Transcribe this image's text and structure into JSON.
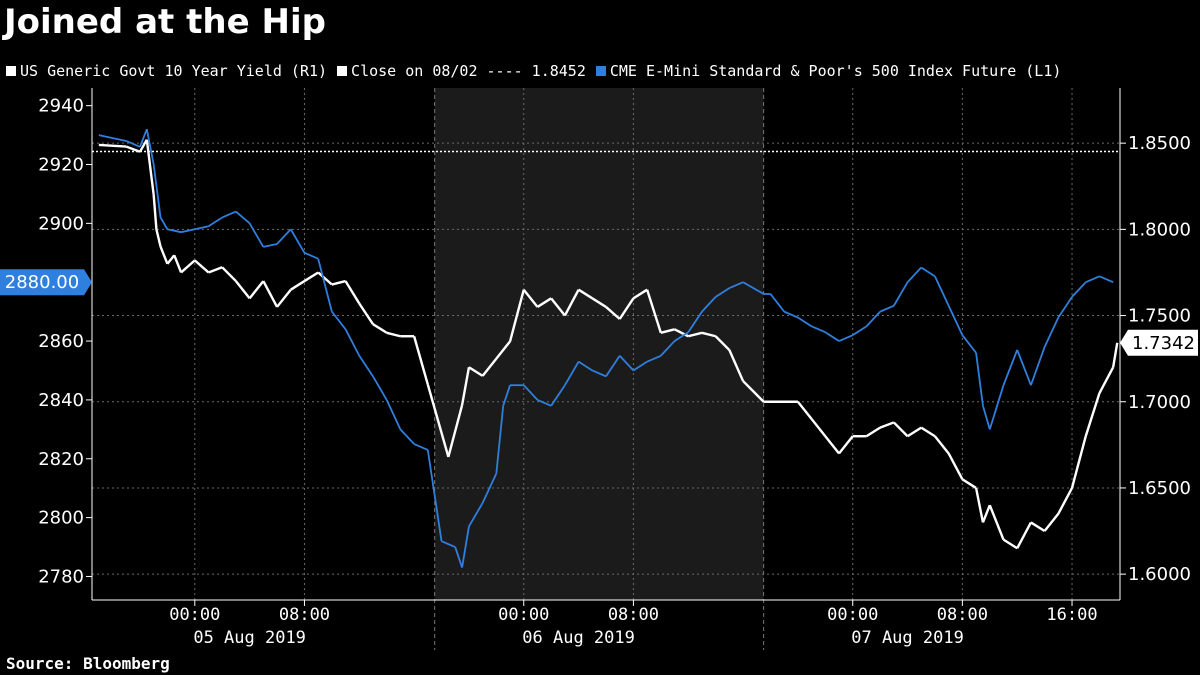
{
  "title": "Joined at the Hip",
  "legend": [
    {
      "label": "US Generic Govt 10 Year Yield  (R1)",
      "color": "#ffffff"
    },
    {
      "label": "Close on 08/02 ---- 1.8452",
      "color": "#ffffff"
    },
    {
      "label": "CME E-Mini Standard & Poor's 500 Index Future  (L1)",
      "color": "#2f7fde"
    }
  ],
  "source": "Source: Bloomberg",
  "colors": {
    "background": "#000000",
    "shade": "#1b1b1b",
    "yield": "#ffffff",
    "spx": "#2f7fde",
    "grid": "#6a6a6a"
  },
  "chart_data": {
    "type": "line",
    "grid": true,
    "left_axis": {
      "ticks": [
        "2940",
        "2920",
        "2900",
        "2880",
        "2860",
        "2840",
        "2820",
        "2800",
        "2780"
      ],
      "ylim": [
        2772,
        2946
      ],
      "last_value_label": "2880.00"
    },
    "right_axis": {
      "ticks": [
        "1.8500",
        "1.8000",
        "1.7500",
        "1.7000",
        "1.6500",
        "1.6000"
      ],
      "ylim": [
        1.585,
        1.882
      ],
      "last_value_label": "1.7342"
    },
    "x_tick_labels": [
      "00:00",
      "08:00",
      "00:00",
      "08:00",
      "00:00",
      "08:00",
      "16:00"
    ],
    "x_ticks_hours": [
      0,
      8,
      24,
      32,
      48,
      56,
      64
    ],
    "day_labels": [
      {
        "label": "05 Aug 2019",
        "hour": 4
      },
      {
        "label": "06 Aug 2019",
        "hour": 28
      },
      {
        "label": "07 Aug 2019",
        "hour": 52
      }
    ],
    "x_range_hours": [
      -7.5,
      67.5
    ],
    "shaded_session_hours": [
      17.5,
      41.5
    ],
    "reference_line": {
      "label": "Close on 08/02",
      "value": 1.8452,
      "axis": "right"
    },
    "series": [
      {
        "name": "US Generic Govt 10 Year Yield",
        "axis": "right",
        "points": [
          [
            -7,
            1.849
          ],
          [
            -5,
            1.848
          ],
          [
            -4,
            1.845
          ],
          [
            -3.5,
            1.852
          ],
          [
            -3,
            1.82
          ],
          [
            -2.8,
            1.8
          ],
          [
            -2.5,
            1.79
          ],
          [
            -2,
            1.78
          ],
          [
            -1.5,
            1.785
          ],
          [
            -1,
            1.775
          ],
          [
            0,
            1.782
          ],
          [
            1,
            1.775
          ],
          [
            2,
            1.778
          ],
          [
            3,
            1.77
          ],
          [
            4,
            1.76
          ],
          [
            5,
            1.77
          ],
          [
            6,
            1.755
          ],
          [
            7,
            1.765
          ],
          [
            8,
            1.77
          ],
          [
            9,
            1.775
          ],
          [
            10,
            1.768
          ],
          [
            11,
            1.77
          ],
          [
            12,
            1.757
          ],
          [
            13,
            1.745
          ],
          [
            14,
            1.74
          ],
          [
            15,
            1.738
          ],
          [
            16,
            1.738
          ],
          [
            17,
            1.71
          ],
          [
            18.5,
            1.668
          ],
          [
            19.5,
            1.698
          ],
          [
            20,
            1.72
          ],
          [
            21,
            1.715
          ],
          [
            22,
            1.725
          ],
          [
            23,
            1.735
          ],
          [
            24,
            1.765
          ],
          [
            25,
            1.755
          ],
          [
            26,
            1.76
          ],
          [
            27,
            1.75
          ],
          [
            28,
            1.765
          ],
          [
            29,
            1.76
          ],
          [
            30,
            1.755
          ],
          [
            31,
            1.748
          ],
          [
            32,
            1.76
          ],
          [
            33,
            1.765
          ],
          [
            34,
            1.74
          ],
          [
            35,
            1.742
          ],
          [
            36,
            1.738
          ],
          [
            37,
            1.74
          ],
          [
            38,
            1.738
          ],
          [
            39,
            1.73
          ],
          [
            40,
            1.712
          ],
          [
            41.5,
            1.7
          ],
          [
            44,
            1.7
          ],
          [
            45,
            1.69
          ],
          [
            46,
            1.68
          ],
          [
            47,
            1.67
          ],
          [
            48,
            1.68
          ],
          [
            49,
            1.68
          ],
          [
            50,
            1.685
          ],
          [
            51,
            1.688
          ],
          [
            52,
            1.68
          ],
          [
            53,
            1.685
          ],
          [
            54,
            1.68
          ],
          [
            55,
            1.67
          ],
          [
            56,
            1.655
          ],
          [
            57,
            1.65
          ],
          [
            57.5,
            1.63
          ],
          [
            58,
            1.64
          ],
          [
            59,
            1.62
          ],
          [
            60,
            1.615
          ],
          [
            61,
            1.63
          ],
          [
            62,
            1.625
          ],
          [
            63,
            1.635
          ],
          [
            64,
            1.65
          ],
          [
            65,
            1.68
          ],
          [
            66,
            1.705
          ],
          [
            67,
            1.72
          ],
          [
            67.3,
            1.7342
          ]
        ]
      },
      {
        "name": "CME E-Mini Standard & Poor's 500 Index Future",
        "axis": "left",
        "points": [
          [
            -7,
            2930
          ],
          [
            -5,
            2928
          ],
          [
            -4,
            2926
          ],
          [
            -3.5,
            2932
          ],
          [
            -3,
            2920
          ],
          [
            -2.5,
            2902
          ],
          [
            -2,
            2898
          ],
          [
            -1,
            2897
          ],
          [
            0,
            2898
          ],
          [
            1,
            2899
          ],
          [
            2,
            2902
          ],
          [
            3,
            2904
          ],
          [
            4,
            2900
          ],
          [
            5,
            2892
          ],
          [
            6,
            2893
          ],
          [
            7,
            2898
          ],
          [
            8,
            2890
          ],
          [
            9,
            2888
          ],
          [
            10,
            2870
          ],
          [
            11,
            2864
          ],
          [
            12,
            2855
          ],
          [
            13,
            2848
          ],
          [
            14,
            2840
          ],
          [
            15,
            2830
          ],
          [
            16,
            2825
          ],
          [
            17,
            2823
          ],
          [
            18,
            2792
          ],
          [
            19,
            2790
          ],
          [
            19.5,
            2783
          ],
          [
            20,
            2797
          ],
          [
            21,
            2805
          ],
          [
            22,
            2815
          ],
          [
            22.5,
            2838
          ],
          [
            23,
            2845
          ],
          [
            24,
            2845
          ],
          [
            25,
            2840
          ],
          [
            26,
            2838
          ],
          [
            27,
            2845
          ],
          [
            28,
            2853
          ],
          [
            29,
            2850
          ],
          [
            30,
            2848
          ],
          [
            31,
            2855
          ],
          [
            32,
            2850
          ],
          [
            33,
            2853
          ],
          [
            34,
            2855
          ],
          [
            35,
            2860
          ],
          [
            36,
            2863
          ],
          [
            37,
            2870
          ],
          [
            38,
            2875
          ],
          [
            39,
            2878
          ],
          [
            40,
            2880
          ],
          [
            41.5,
            2876
          ],
          [
            42,
            2876
          ],
          [
            43,
            2870
          ],
          [
            44,
            2868
          ],
          [
            45,
            2865
          ],
          [
            46,
            2863
          ],
          [
            47,
            2860
          ],
          [
            48,
            2862
          ],
          [
            49,
            2865
          ],
          [
            50,
            2870
          ],
          [
            51,
            2872
          ],
          [
            52,
            2880
          ],
          [
            53,
            2885
          ],
          [
            54,
            2882
          ],
          [
            55,
            2872
          ],
          [
            56,
            2862
          ],
          [
            57,
            2856
          ],
          [
            57.5,
            2838
          ],
          [
            58,
            2830
          ],
          [
            59,
            2845
          ],
          [
            60,
            2857
          ],
          [
            61,
            2845
          ],
          [
            62,
            2858
          ],
          [
            63,
            2868
          ],
          [
            64,
            2875
          ],
          [
            65,
            2880
          ],
          [
            66,
            2882
          ],
          [
            67,
            2880
          ]
        ]
      }
    ]
  }
}
